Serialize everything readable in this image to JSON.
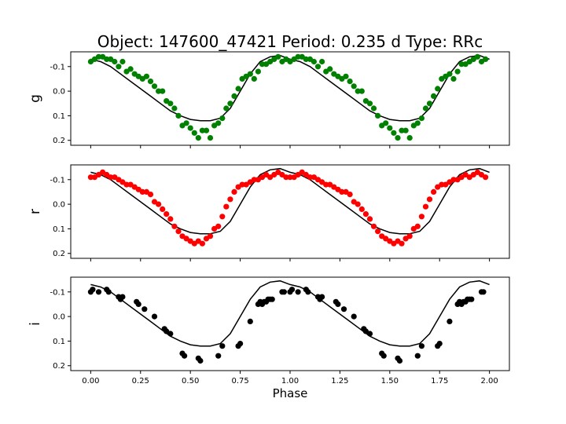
{
  "chart_data": {
    "type": "scatter",
    "title": "Object: 147600_47421    Period: 0.235 d    Type: RRc",
    "xlabel": "Phase",
    "xlim": [
      -0.1,
      2.1
    ],
    "xticks": [
      0.0,
      0.25,
      0.5,
      0.75,
      1.0,
      1.25,
      1.5,
      1.75,
      2.0
    ],
    "xtick_labels": [
      "0.00",
      "0.25",
      "0.50",
      "0.75",
      "1.00",
      "1.25",
      "1.50",
      "1.75",
      "2.00"
    ],
    "model_curve": {
      "phase": [
        0.0,
        0.05,
        0.1,
        0.15,
        0.2,
        0.25,
        0.3,
        0.35,
        0.4,
        0.45,
        0.5,
        0.55,
        0.6,
        0.65,
        0.7,
        0.75,
        0.8,
        0.85,
        0.9,
        0.95,
        1.0
      ],
      "mag": [
        -0.13,
        -0.12,
        -0.1,
        -0.07,
        -0.04,
        -0.01,
        0.02,
        0.05,
        0.08,
        0.1,
        0.115,
        0.12,
        0.12,
        0.11,
        0.07,
        0.0,
        -0.07,
        -0.12,
        -0.14,
        -0.145,
        -0.13
      ]
    },
    "panels": [
      {
        "ylabel": "g",
        "color": "#008000",
        "ylim": [
          0.22,
          -0.16
        ],
        "yticks": [
          -0.1,
          0.0,
          0.1,
          0.2
        ],
        "ytick_labels": [
          "-0.1",
          "0.0",
          "0.1",
          "0.2"
        ],
        "phase": [
          0.0,
          0.02,
          0.04,
          0.06,
          0.08,
          0.1,
          0.12,
          0.14,
          0.16,
          0.18,
          0.2,
          0.22,
          0.24,
          0.26,
          0.28,
          0.3,
          0.32,
          0.34,
          0.36,
          0.38,
          0.4,
          0.42,
          0.44,
          0.46,
          0.48,
          0.5,
          0.52,
          0.54,
          0.56,
          0.58,
          0.6,
          0.62,
          0.64,
          0.66,
          0.68,
          0.7,
          0.72,
          0.74,
          0.76,
          0.78,
          0.8,
          0.82,
          0.84,
          0.86,
          0.88,
          0.9,
          0.92,
          0.94,
          0.96,
          0.98
        ],
        "mag": [
          -0.12,
          -0.13,
          -0.14,
          -0.14,
          -0.13,
          -0.13,
          -0.12,
          -0.1,
          -0.12,
          -0.08,
          -0.09,
          -0.07,
          -0.06,
          -0.05,
          -0.06,
          -0.04,
          -0.02,
          0.0,
          0.0,
          0.04,
          0.05,
          0.07,
          0.1,
          0.14,
          0.13,
          0.15,
          0.17,
          0.19,
          0.16,
          0.16,
          0.19,
          0.14,
          0.13,
          0.11,
          0.07,
          0.05,
          0.02,
          -0.01,
          -0.05,
          -0.06,
          -0.07,
          -0.05,
          -0.08,
          -0.11,
          -0.11,
          -0.12,
          -0.13,
          -0.14,
          -0.12,
          -0.13
        ]
      },
      {
        "ylabel": "r",
        "color": "#ff0000",
        "ylim": [
          0.22,
          -0.16
        ],
        "yticks": [
          -0.1,
          0.0,
          0.1,
          0.2
        ],
        "ytick_labels": [
          "-0.1",
          "0.0",
          "0.1",
          "0.2"
        ],
        "phase": [
          0.0,
          0.02,
          0.04,
          0.06,
          0.08,
          0.1,
          0.12,
          0.14,
          0.16,
          0.18,
          0.2,
          0.22,
          0.24,
          0.26,
          0.28,
          0.3,
          0.32,
          0.34,
          0.36,
          0.38,
          0.4,
          0.42,
          0.44,
          0.46,
          0.48,
          0.5,
          0.52,
          0.54,
          0.56,
          0.58,
          0.6,
          0.62,
          0.64,
          0.66,
          0.68,
          0.7,
          0.72,
          0.74,
          0.76,
          0.78,
          0.8,
          0.82,
          0.84,
          0.86,
          0.88,
          0.9,
          0.92,
          0.94,
          0.96,
          0.98
        ],
        "mag": [
          -0.11,
          -0.11,
          -0.12,
          -0.13,
          -0.12,
          -0.11,
          -0.11,
          -0.1,
          -0.09,
          -0.08,
          -0.08,
          -0.07,
          -0.06,
          -0.05,
          -0.05,
          -0.04,
          -0.01,
          0.0,
          0.02,
          0.04,
          0.06,
          0.09,
          0.11,
          0.13,
          0.14,
          0.15,
          0.16,
          0.15,
          0.16,
          0.14,
          0.13,
          0.1,
          0.09,
          0.05,
          0.01,
          -0.02,
          -0.05,
          -0.07,
          -0.08,
          -0.08,
          -0.09,
          -0.1,
          -0.1,
          -0.11,
          -0.12,
          -0.11,
          -0.12,
          -0.13,
          -0.12,
          -0.11
        ]
      },
      {
        "ylabel": "i",
        "color": "#000000",
        "ylim": [
          0.22,
          -0.16
        ],
        "yticks": [
          -0.1,
          0.0,
          0.1,
          0.2
        ],
        "ytick_labels": [
          "-0.1",
          "0.0",
          "0.1",
          "0.2"
        ],
        "phase": [
          0.0,
          0.01,
          0.04,
          0.08,
          0.09,
          0.14,
          0.15,
          0.16,
          0.23,
          0.24,
          0.27,
          0.32,
          0.37,
          0.38,
          0.4,
          0.46,
          0.47,
          0.54,
          0.55,
          0.64,
          0.66,
          0.74,
          0.75,
          0.8,
          0.84,
          0.85,
          0.86,
          0.87,
          0.88,
          0.89,
          0.9,
          0.91,
          0.96,
          0.97
        ],
        "mag": [
          -0.1,
          -0.11,
          -0.1,
          -0.11,
          -0.1,
          -0.08,
          -0.07,
          -0.08,
          -0.06,
          -0.05,
          -0.03,
          0.0,
          0.05,
          0.06,
          0.07,
          0.15,
          0.16,
          0.17,
          0.18,
          0.16,
          0.12,
          0.12,
          0.11,
          0.02,
          -0.05,
          -0.06,
          -0.05,
          -0.06,
          -0.06,
          -0.07,
          -0.07,
          -0.07,
          -0.1,
          -0.1
        ]
      }
    ]
  }
}
